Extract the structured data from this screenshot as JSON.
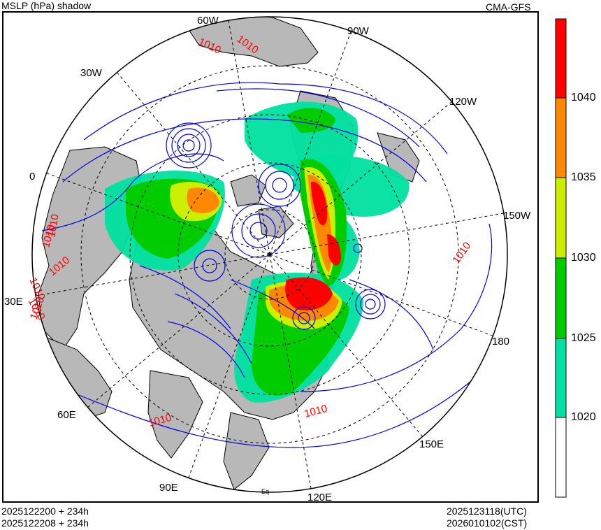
{
  "header": {
    "title": "MSLP (hPa) shadow",
    "model": "CMA-GFS"
  },
  "footer": {
    "init_utc": "2025122200 + 234h",
    "init_cst": "2025122208 + 234h",
    "valid_utc": "2025123118(UTC)",
    "valid_cst": "2026010102(CST)"
  },
  "map": {
    "projection_note": "Polar stereographic, North Pole",
    "longitude_labels": [
      "60W",
      "90W",
      "30W",
      "120W",
      "0",
      "150W",
      "30E",
      "180",
      "60E",
      "150E",
      "90E",
      "120E"
    ],
    "equator_label": "Eq",
    "contour_labels": [
      "1010",
      "1010",
      "1010",
      "1010",
      "1010",
      "1010",
      "1010",
      "1010",
      "1010",
      "1010",
      "1010"
    ]
  },
  "colorbar": {
    "tick_labels": [
      "1040",
      "1035",
      "1030",
      "1025",
      "1020"
    ],
    "colors": [
      "#ffffff",
      "#00e0a0",
      "#00cc00",
      "#ccee00",
      "#ff8800",
      "#ff0000"
    ]
  }
}
